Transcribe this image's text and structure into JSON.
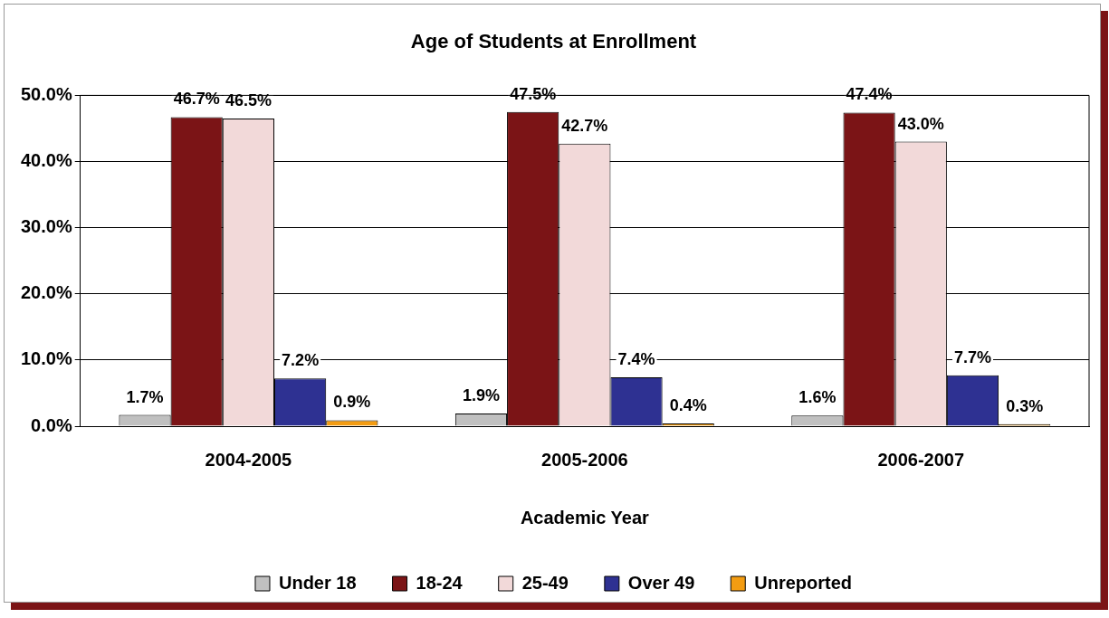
{
  "chart_data": {
    "type": "bar",
    "title": "Age of Students at Enrollment",
    "xlabel": "Academic Year",
    "categories": [
      "2004-2005",
      "2005-2006",
      "2006-2007"
    ],
    "series": [
      {
        "name": "Under 18",
        "color": "#c0c0c0",
        "values": [
          1.7,
          1.9,
          1.6
        ],
        "value_labels": [
          "1.7%",
          "1.9%",
          "1.6%"
        ]
      },
      {
        "name": "18-24",
        "color": "#7b1416",
        "values": [
          46.7,
          47.5,
          47.4
        ],
        "value_labels": [
          "46.7%",
          "47.5%",
          "47.4%"
        ]
      },
      {
        "name": "25-49",
        "color": "#f2d9d9",
        "values": [
          46.5,
          42.7,
          43.0
        ],
        "value_labels": [
          "46.5%",
          "42.7%",
          "43.0%"
        ]
      },
      {
        "name": "Over 49",
        "color": "#2e3192",
        "values": [
          7.2,
          7.4,
          7.7
        ],
        "value_labels": [
          "7.2%",
          "7.4%",
          "7.7%"
        ]
      },
      {
        "name": "Unreported",
        "color": "#f39c12",
        "values": [
          0.9,
          0.4,
          0.3
        ],
        "value_labels": [
          "0.9%",
          "0.4%",
          "0.3%"
        ]
      }
    ],
    "ylim": [
      0,
      50
    ],
    "yticks": [
      {
        "value": 0,
        "label": "0.0%"
      },
      {
        "value": 10,
        "label": "10.0%"
      },
      {
        "value": 20,
        "label": "20.0%"
      },
      {
        "value": 30,
        "label": "30.0%"
      },
      {
        "value": 40,
        "label": "40.0%"
      },
      {
        "value": 50,
        "label": "50.0%"
      }
    ],
    "grid": "y",
    "legend": "bottom"
  }
}
